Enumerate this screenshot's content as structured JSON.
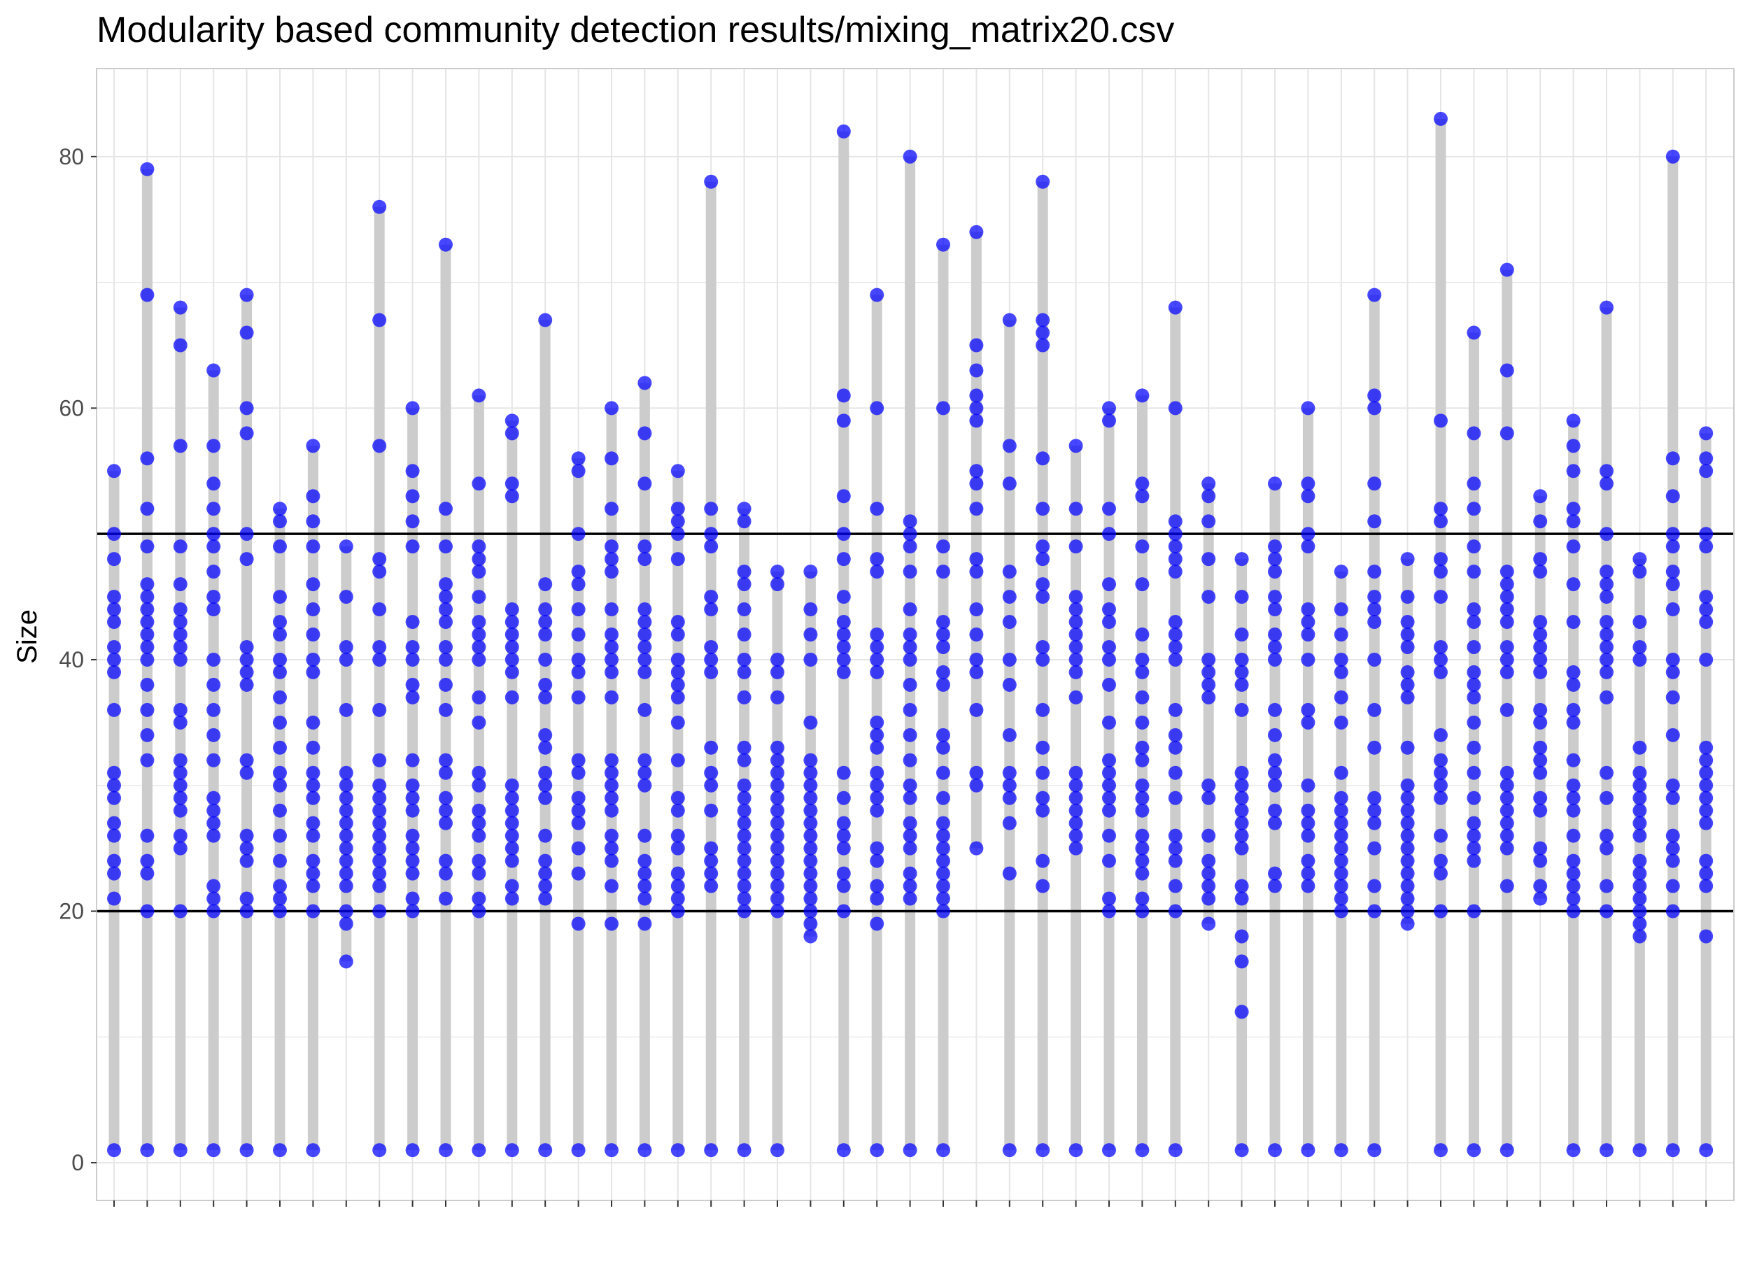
{
  "chart_data": {
    "type": "scatter",
    "title": "Modularity based community detection results/mixing_matrix20.csv",
    "xlabel": "",
    "ylabel": "Size",
    "ylim": [
      -3,
      87
    ],
    "y_ticks": [
      0,
      20,
      40,
      60,
      80
    ],
    "grid": true,
    "hlines": [
      20,
      50
    ],
    "colors": {
      "points": "#0000ff",
      "range_bar": "#cccccc",
      "grid": "#e5e5e5",
      "hline": "#000000",
      "panel_border": "#cccccc"
    },
    "series": [
      {
        "values": [
          1,
          21,
          23,
          24,
          26,
          27,
          29,
          30,
          31,
          36,
          39,
          40,
          41,
          43,
          44,
          45,
          48,
          50,
          55
        ]
      },
      {
        "values": [
          1,
          20,
          23,
          24,
          26,
          32,
          34,
          36,
          38,
          40,
          41,
          42,
          43,
          44,
          45,
          46,
          49,
          52,
          56,
          69,
          79
        ]
      },
      {
        "values": [
          1,
          20,
          25,
          26,
          28,
          29,
          30,
          31,
          32,
          35,
          36,
          40,
          41,
          42,
          43,
          44,
          46,
          49,
          57,
          65,
          68
        ]
      },
      {
        "values": [
          1,
          20,
          21,
          22,
          26,
          27,
          28,
          29,
          32,
          34,
          36,
          38,
          40,
          44,
          45,
          47,
          49,
          50,
          52,
          54,
          57,
          63
        ]
      },
      {
        "values": [
          1,
          20,
          21,
          24,
          25,
          26,
          31,
          32,
          38,
          39,
          40,
          41,
          48,
          50,
          58,
          60,
          66,
          69
        ]
      },
      {
        "values": [
          1,
          20,
          21,
          22,
          24,
          26,
          28,
          30,
          31,
          33,
          35,
          37,
          39,
          40,
          42,
          43,
          45,
          49,
          51,
          52
        ]
      },
      {
        "values": [
          1,
          20,
          22,
          23,
          24,
          26,
          27,
          29,
          30,
          31,
          33,
          35,
          39,
          40,
          42,
          44,
          46,
          49,
          51,
          53,
          57
        ]
      },
      {
        "values": [
          16,
          19,
          20,
          22,
          23,
          24,
          25,
          26,
          27,
          28,
          29,
          30,
          31,
          36,
          40,
          41,
          45,
          49
        ]
      },
      {
        "values": [
          1,
          20,
          22,
          23,
          24,
          25,
          26,
          27,
          28,
          29,
          30,
          32,
          36,
          40,
          41,
          44,
          47,
          48,
          57,
          67,
          76
        ]
      },
      {
        "values": [
          1,
          20,
          21,
          23,
          24,
          25,
          26,
          28,
          29,
          30,
          32,
          37,
          38,
          40,
          41,
          43,
          49,
          51,
          53,
          55,
          60
        ]
      },
      {
        "values": [
          1,
          21,
          23,
          24,
          27,
          28,
          29,
          31,
          32,
          36,
          38,
          40,
          41,
          43,
          44,
          45,
          46,
          49,
          52,
          73
        ]
      },
      {
        "values": [
          1,
          20,
          21,
          23,
          24,
          26,
          27,
          28,
          30,
          31,
          35,
          37,
          40,
          41,
          42,
          43,
          45,
          47,
          48,
          49,
          54,
          61
        ]
      },
      {
        "values": [
          1,
          21,
          22,
          24,
          25,
          26,
          27,
          28,
          29,
          30,
          37,
          39,
          40,
          41,
          42,
          43,
          44,
          53,
          54,
          58,
          59
        ]
      },
      {
        "values": [
          1,
          21,
          22,
          23,
          24,
          26,
          29,
          30,
          31,
          33,
          34,
          37,
          38,
          40,
          42,
          43,
          44,
          46,
          67
        ]
      },
      {
        "values": [
          1,
          19,
          23,
          25,
          27,
          28,
          29,
          31,
          32,
          37,
          39,
          40,
          42,
          44,
          46,
          47,
          50,
          55,
          56
        ]
      },
      {
        "values": [
          1,
          19,
          22,
          24,
          25,
          26,
          28,
          29,
          30,
          31,
          32,
          37,
          39,
          40,
          41,
          42,
          44,
          47,
          48,
          49,
          52,
          56,
          60
        ]
      },
      {
        "values": [
          1,
          19,
          21,
          22,
          23,
          24,
          26,
          30,
          31,
          32,
          36,
          39,
          40,
          41,
          42,
          43,
          44,
          48,
          49,
          54,
          58,
          62
        ]
      },
      {
        "values": [
          1,
          20,
          21,
          22,
          23,
          25,
          26,
          28,
          29,
          32,
          35,
          37,
          38,
          39,
          40,
          42,
          43,
          48,
          50,
          51,
          52,
          55
        ]
      },
      {
        "values": [
          1,
          22,
          23,
          24,
          25,
          28,
          30,
          31,
          33,
          39,
          40,
          41,
          44,
          45,
          49,
          50,
          52,
          78
        ]
      },
      {
        "values": [
          1,
          20,
          21,
          22,
          23,
          24,
          25,
          26,
          27,
          28,
          29,
          30,
          32,
          33,
          37,
          39,
          40,
          42,
          44,
          46,
          47,
          51,
          52
        ]
      },
      {
        "values": [
          1,
          20,
          21,
          22,
          23,
          24,
          25,
          26,
          27,
          28,
          29,
          30,
          31,
          32,
          33,
          37,
          39,
          40,
          46,
          47
        ]
      },
      {
        "values": [
          18,
          19,
          20,
          21,
          22,
          23,
          24,
          25,
          26,
          27,
          28,
          29,
          30,
          31,
          32,
          35,
          40,
          42,
          44,
          47
        ]
      },
      {
        "values": [
          1,
          20,
          22,
          23,
          25,
          26,
          27,
          29,
          31,
          39,
          40,
          41,
          42,
          43,
          45,
          48,
          50,
          53,
          59,
          61,
          82
        ]
      },
      {
        "values": [
          1,
          19,
          21,
          22,
          24,
          25,
          28,
          29,
          30,
          31,
          33,
          34,
          35,
          39,
          40,
          41,
          42,
          47,
          48,
          52,
          60,
          69
        ]
      },
      {
        "values": [
          1,
          21,
          22,
          23,
          25,
          26,
          27,
          29,
          30,
          32,
          34,
          36,
          38,
          40,
          41,
          42,
          44,
          47,
          49,
          50,
          51,
          80
        ]
      },
      {
        "values": [
          1,
          20,
          21,
          22,
          23,
          24,
          25,
          26,
          27,
          29,
          31,
          33,
          34,
          38,
          39,
          41,
          42,
          43,
          47,
          49,
          60,
          73
        ]
      },
      {
        "values": [
          25,
          30,
          31,
          36,
          39,
          40,
          42,
          44,
          47,
          48,
          52,
          54,
          55,
          59,
          60,
          61,
          63,
          65,
          74
        ]
      },
      {
        "values": [
          1,
          23,
          27,
          29,
          30,
          31,
          34,
          38,
          40,
          43,
          45,
          47,
          54,
          57,
          67
        ]
      },
      {
        "values": [
          1,
          22,
          24,
          28,
          29,
          31,
          33,
          36,
          40,
          41,
          45,
          46,
          48,
          49,
          52,
          56,
          65,
          66,
          67,
          78
        ]
      },
      {
        "values": [
          1,
          25,
          26,
          27,
          28,
          29,
          30,
          31,
          37,
          39,
          40,
          41,
          42,
          43,
          44,
          45,
          49,
          52,
          57
        ]
      },
      {
        "values": [
          1,
          20,
          21,
          24,
          26,
          28,
          29,
          30,
          31,
          32,
          35,
          38,
          40,
          41,
          43,
          44,
          46,
          50,
          52,
          59,
          60
        ]
      },
      {
        "values": [
          1,
          20,
          21,
          23,
          24,
          25,
          26,
          28,
          29,
          30,
          32,
          33,
          35,
          37,
          39,
          40,
          42,
          46,
          49,
          53,
          54,
          61
        ]
      },
      {
        "values": [
          1,
          20,
          22,
          24,
          25,
          26,
          29,
          31,
          33,
          34,
          36,
          40,
          41,
          42,
          43,
          47,
          48,
          49,
          50,
          51,
          60,
          68
        ]
      },
      {
        "values": [
          19,
          21,
          22,
          23,
          24,
          26,
          29,
          30,
          37,
          38,
          39,
          40,
          45,
          48,
          51,
          53,
          54
        ]
      },
      {
        "values": [
          1,
          12,
          16,
          18,
          21,
          22,
          25,
          26,
          27,
          28,
          29,
          30,
          31,
          36,
          38,
          39,
          40,
          42,
          45,
          48
        ]
      },
      {
        "values": [
          1,
          22,
          23,
          27,
          28,
          30,
          31,
          32,
          34,
          36,
          40,
          41,
          42,
          44,
          45,
          47,
          48,
          49,
          54
        ]
      },
      {
        "values": [
          1,
          22,
          23,
          24,
          26,
          27,
          28,
          30,
          35,
          36,
          40,
          42,
          43,
          44,
          49,
          50,
          53,
          54,
          60
        ]
      },
      {
        "values": [
          1,
          20,
          21,
          22,
          23,
          24,
          25,
          26,
          27,
          28,
          29,
          31,
          35,
          37,
          39,
          40,
          42,
          44,
          47
        ]
      },
      {
        "values": [
          1,
          20,
          22,
          25,
          27,
          28,
          29,
          33,
          36,
          40,
          43,
          44,
          45,
          47,
          51,
          54,
          60,
          61,
          69
        ]
      },
      {
        "values": [
          19,
          20,
          21,
          22,
          23,
          24,
          25,
          26,
          27,
          28,
          29,
          30,
          33,
          37,
          38,
          39,
          41,
          42,
          43,
          45,
          48
        ]
      },
      {
        "values": [
          1,
          20,
          23,
          24,
          26,
          29,
          30,
          31,
          32,
          34,
          39,
          40,
          41,
          45,
          47,
          48,
          51,
          52,
          59,
          83
        ]
      },
      {
        "values": [
          1,
          20,
          24,
          25,
          26,
          27,
          29,
          31,
          33,
          35,
          37,
          38,
          39,
          41,
          43,
          44,
          47,
          49,
          52,
          54,
          58,
          66
        ]
      },
      {
        "values": [
          1,
          22,
          25,
          26,
          27,
          28,
          29,
          30,
          31,
          36,
          39,
          40,
          41,
          43,
          44,
          45,
          46,
          47,
          58,
          63,
          71
        ]
      },
      {
        "values": [
          21,
          22,
          24,
          25,
          28,
          29,
          31,
          32,
          33,
          35,
          36,
          39,
          40,
          41,
          42,
          43,
          47,
          48,
          51,
          53
        ]
      },
      {
        "values": [
          1,
          20,
          21,
          22,
          23,
          24,
          26,
          28,
          29,
          30,
          32,
          35,
          36,
          38,
          39,
          43,
          46,
          49,
          51,
          52,
          55,
          57,
          59
        ]
      },
      {
        "values": [
          1,
          20,
          22,
          25,
          26,
          29,
          31,
          37,
          39,
          40,
          41,
          42,
          43,
          45,
          46,
          47,
          50,
          54,
          55,
          68
        ]
      },
      {
        "values": [
          1,
          18,
          19,
          20,
          21,
          22,
          23,
          24,
          26,
          27,
          28,
          29,
          30,
          31,
          33,
          40,
          41,
          43,
          47,
          48
        ]
      },
      {
        "values": [
          1,
          20,
          22,
          24,
          25,
          26,
          29,
          30,
          34,
          37,
          39,
          40,
          44,
          46,
          47,
          49,
          50,
          53,
          56,
          80
        ]
      },
      {
        "values": [
          1,
          18,
          22,
          23,
          24,
          27,
          28,
          29,
          30,
          31,
          32,
          33,
          40,
          43,
          44,
          45,
          49,
          50,
          55,
          56,
          58
        ]
      }
    ]
  }
}
